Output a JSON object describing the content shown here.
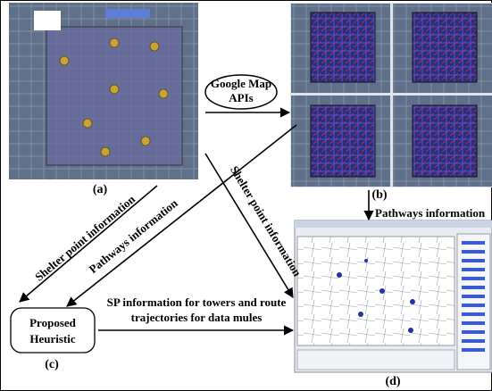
{
  "panels": {
    "a": {
      "label": "(a)"
    },
    "b": {
      "label": "(b)"
    },
    "c": {
      "label": "(c)",
      "title_line1": "Proposed",
      "title_line2": "Heuristic"
    },
    "d": {
      "label": "(d)"
    }
  },
  "api": {
    "line1": "Google Map",
    "line2": "APIs"
  },
  "edges": [
    {
      "label": "Shelter point information"
    },
    {
      "label": "Pathways information"
    },
    {
      "label": "Shelter point information"
    },
    {
      "label": "Pathways information"
    },
    {
      "line1": "SP information for towers and route",
      "line2": "trajectories for data mules"
    }
  ]
}
